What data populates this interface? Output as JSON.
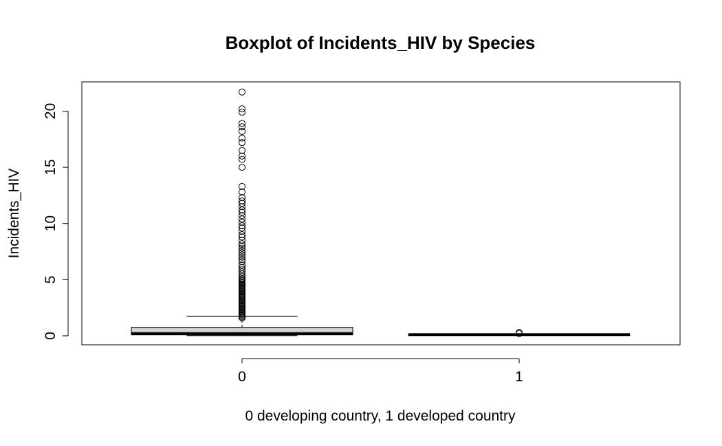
{
  "chart_data": {
    "type": "boxplot",
    "title": "Boxplot of Incidents_HIV by Species",
    "xlabel": "0 developing country, 1 developed country",
    "ylabel": "Incidents_HIV",
    "categories": [
      "0",
      "1"
    ],
    "yticks": [
      0,
      5,
      10,
      15,
      20
    ],
    "ylim": [
      -0.8,
      22.6
    ],
    "grid": false,
    "legend": "none",
    "box_fill": "#d3d3d3",
    "boxes": [
      {
        "category": "0",
        "whisker_low": 0.01,
        "q1": 0.08,
        "median": 0.2,
        "q3": 0.75,
        "whisker_high": 1.75,
        "outliers": [
          1.6,
          1.7,
          1.8,
          1.9,
          2.0,
          2.1,
          2.2,
          2.3,
          2.4,
          2.5,
          2.6,
          2.7,
          2.8,
          2.9,
          3.0,
          3.1,
          3.2,
          3.3,
          3.4,
          3.5,
          3.6,
          3.7,
          3.8,
          3.9,
          4.0,
          4.1,
          4.2,
          4.3,
          4.4,
          4.5,
          4.6,
          4.7,
          4.8,
          4.9,
          5.0,
          5.1,
          5.3,
          5.5,
          5.7,
          5.9,
          6.1,
          6.3,
          6.6,
          6.8,
          7.0,
          7.2,
          7.4,
          7.6,
          7.8,
          8.0,
          8.2,
          8.5,
          8.8,
          9.0,
          9.3,
          9.6,
          9.8,
          10.1,
          10.4,
          10.7,
          11.0,
          11.2,
          11.5,
          11.8,
          12.0,
          12.3,
          12.8,
          13.3,
          15.0,
          15.7,
          16.0,
          16.5,
          17.2,
          17.6,
          18.2,
          18.6,
          18.9,
          19.9,
          20.2,
          21.7
        ]
      },
      {
        "category": "1",
        "whisker_low": 0.1,
        "q1": 0.1,
        "median": 0.1,
        "q3": 0.1,
        "whisker_high": 0.1,
        "outliers": [
          0.2,
          0.3
        ]
      }
    ]
  }
}
